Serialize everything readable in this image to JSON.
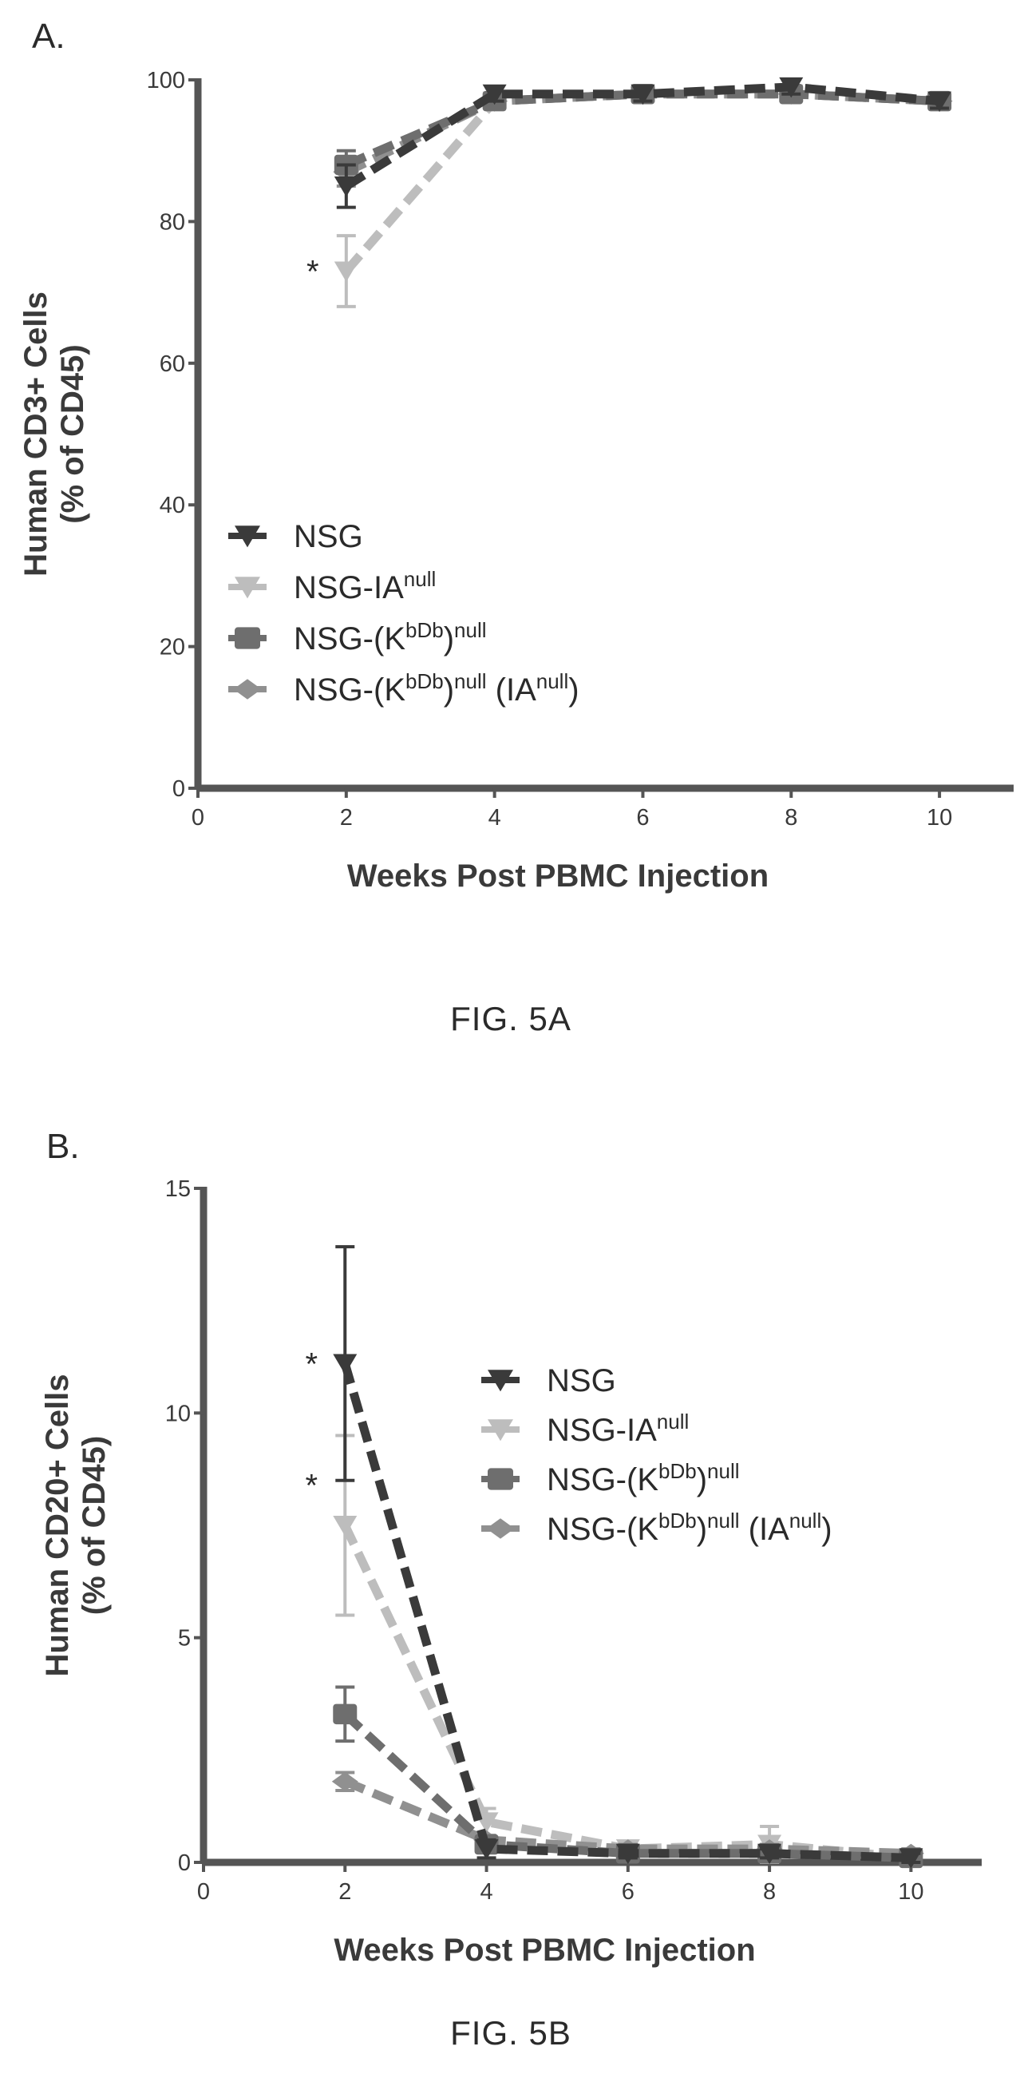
{
  "figures": [
    {
      "panel_letter": "A.",
      "caption": "FIG. 5A",
      "chart_data": {
        "type": "line",
        "xlabel": "Weeks Post PBMC Injection",
        "ylabel": "Human CD3+ Cells (% of CD45)",
        "ylabel_lines": [
          "Human CD3+ Cells",
          "(% of CD45)"
        ],
        "xlim": [
          0,
          11
        ],
        "ylim": [
          0,
          100
        ],
        "xticks": [
          0,
          2,
          4,
          6,
          8,
          10
        ],
        "yticks": [
          0,
          20,
          40,
          60,
          80,
          100
        ],
        "x": [
          2,
          4,
          6,
          8,
          10
        ],
        "series": [
          {
            "name": "NSG",
            "values": [
              85,
              98,
              98,
              99,
              97
            ],
            "errors": [
              3,
              1,
              1,
              1,
              1
            ],
            "color": "#3a3a3a",
            "marker": "triangle-down"
          },
          {
            "name": "NSG-IA^null",
            "values": [
              73,
              97,
              98,
              98,
              97
            ],
            "errors": [
              5,
              1,
              1,
              1,
              1
            ],
            "color": "#bdbdbd",
            "marker": "triangle-down"
          },
          {
            "name": "NSG-(K^bD^b)^null",
            "values": [
              88,
              97,
              98,
              98,
              97
            ],
            "errors": [
              2,
              1,
              1,
              1,
              1
            ],
            "color": "#6e6e6e",
            "marker": "square"
          },
          {
            "name": "NSG-(K^bD^b)^null (IA^null)",
            "values": [
              87,
              97,
              98,
              98,
              97
            ],
            "errors": [
              2,
              1,
              1,
              1,
              1
            ],
            "color": "#909090",
            "marker": "diamond"
          }
        ],
        "annotations": [
          {
            "text": "*",
            "x": 2,
            "y": 73
          }
        ],
        "legend": "left-middle",
        "grid": false
      }
    },
    {
      "panel_letter": "B.",
      "caption": "FIG. 5B",
      "chart_data": {
        "type": "line",
        "xlabel": "Weeks Post PBMC Injection",
        "ylabel": "Human CD20+ Cells (% of CD45)",
        "ylabel_lines": [
          "Human CD20+ Cells",
          "(% of CD45)"
        ],
        "xlim": [
          0,
          11
        ],
        "ylim": [
          0,
          15
        ],
        "xticks": [
          0,
          2,
          4,
          6,
          8,
          10
        ],
        "yticks": [
          0,
          5,
          10,
          15
        ],
        "x": [
          2,
          4,
          6,
          8,
          10
        ],
        "series": [
          {
            "name": "NSG",
            "values": [
              11.1,
              0.3,
              0.2,
              0.2,
              0.1
            ],
            "errors": [
              2.6,
              0.2,
              0.1,
              0.1,
              0.1
            ],
            "color": "#3a3a3a",
            "marker": "triangle-down"
          },
          {
            "name": "NSG-IA^null",
            "values": [
              7.5,
              0.9,
              0.3,
              0.4,
              0.1
            ],
            "errors": [
              2.0,
              0.3,
              0.1,
              0.4,
              0.1
            ],
            "color": "#bdbdbd",
            "marker": "triangle-down"
          },
          {
            "name": "NSG-(K^bD^b)^null",
            "values": [
              3.3,
              0.4,
              0.2,
              0.2,
              0.1
            ],
            "errors": [
              0.6,
              0.1,
              0.1,
              0.1,
              0.1
            ],
            "color": "#6e6e6e",
            "marker": "square"
          },
          {
            "name": "NSG-(K^bD^b)^null (IA^null)",
            "values": [
              1.8,
              0.5,
              0.3,
              0.3,
              0.2
            ],
            "errors": [
              0.2,
              0.1,
              0.1,
              0.1,
              0.1
            ],
            "color": "#909090",
            "marker": "diamond"
          }
        ],
        "annotations": [
          {
            "text": "*",
            "x": 2,
            "y": 11.1
          },
          {
            "text": "*",
            "x": 2,
            "y": 8.4
          }
        ],
        "legend": "top-right",
        "grid": false
      }
    }
  ]
}
